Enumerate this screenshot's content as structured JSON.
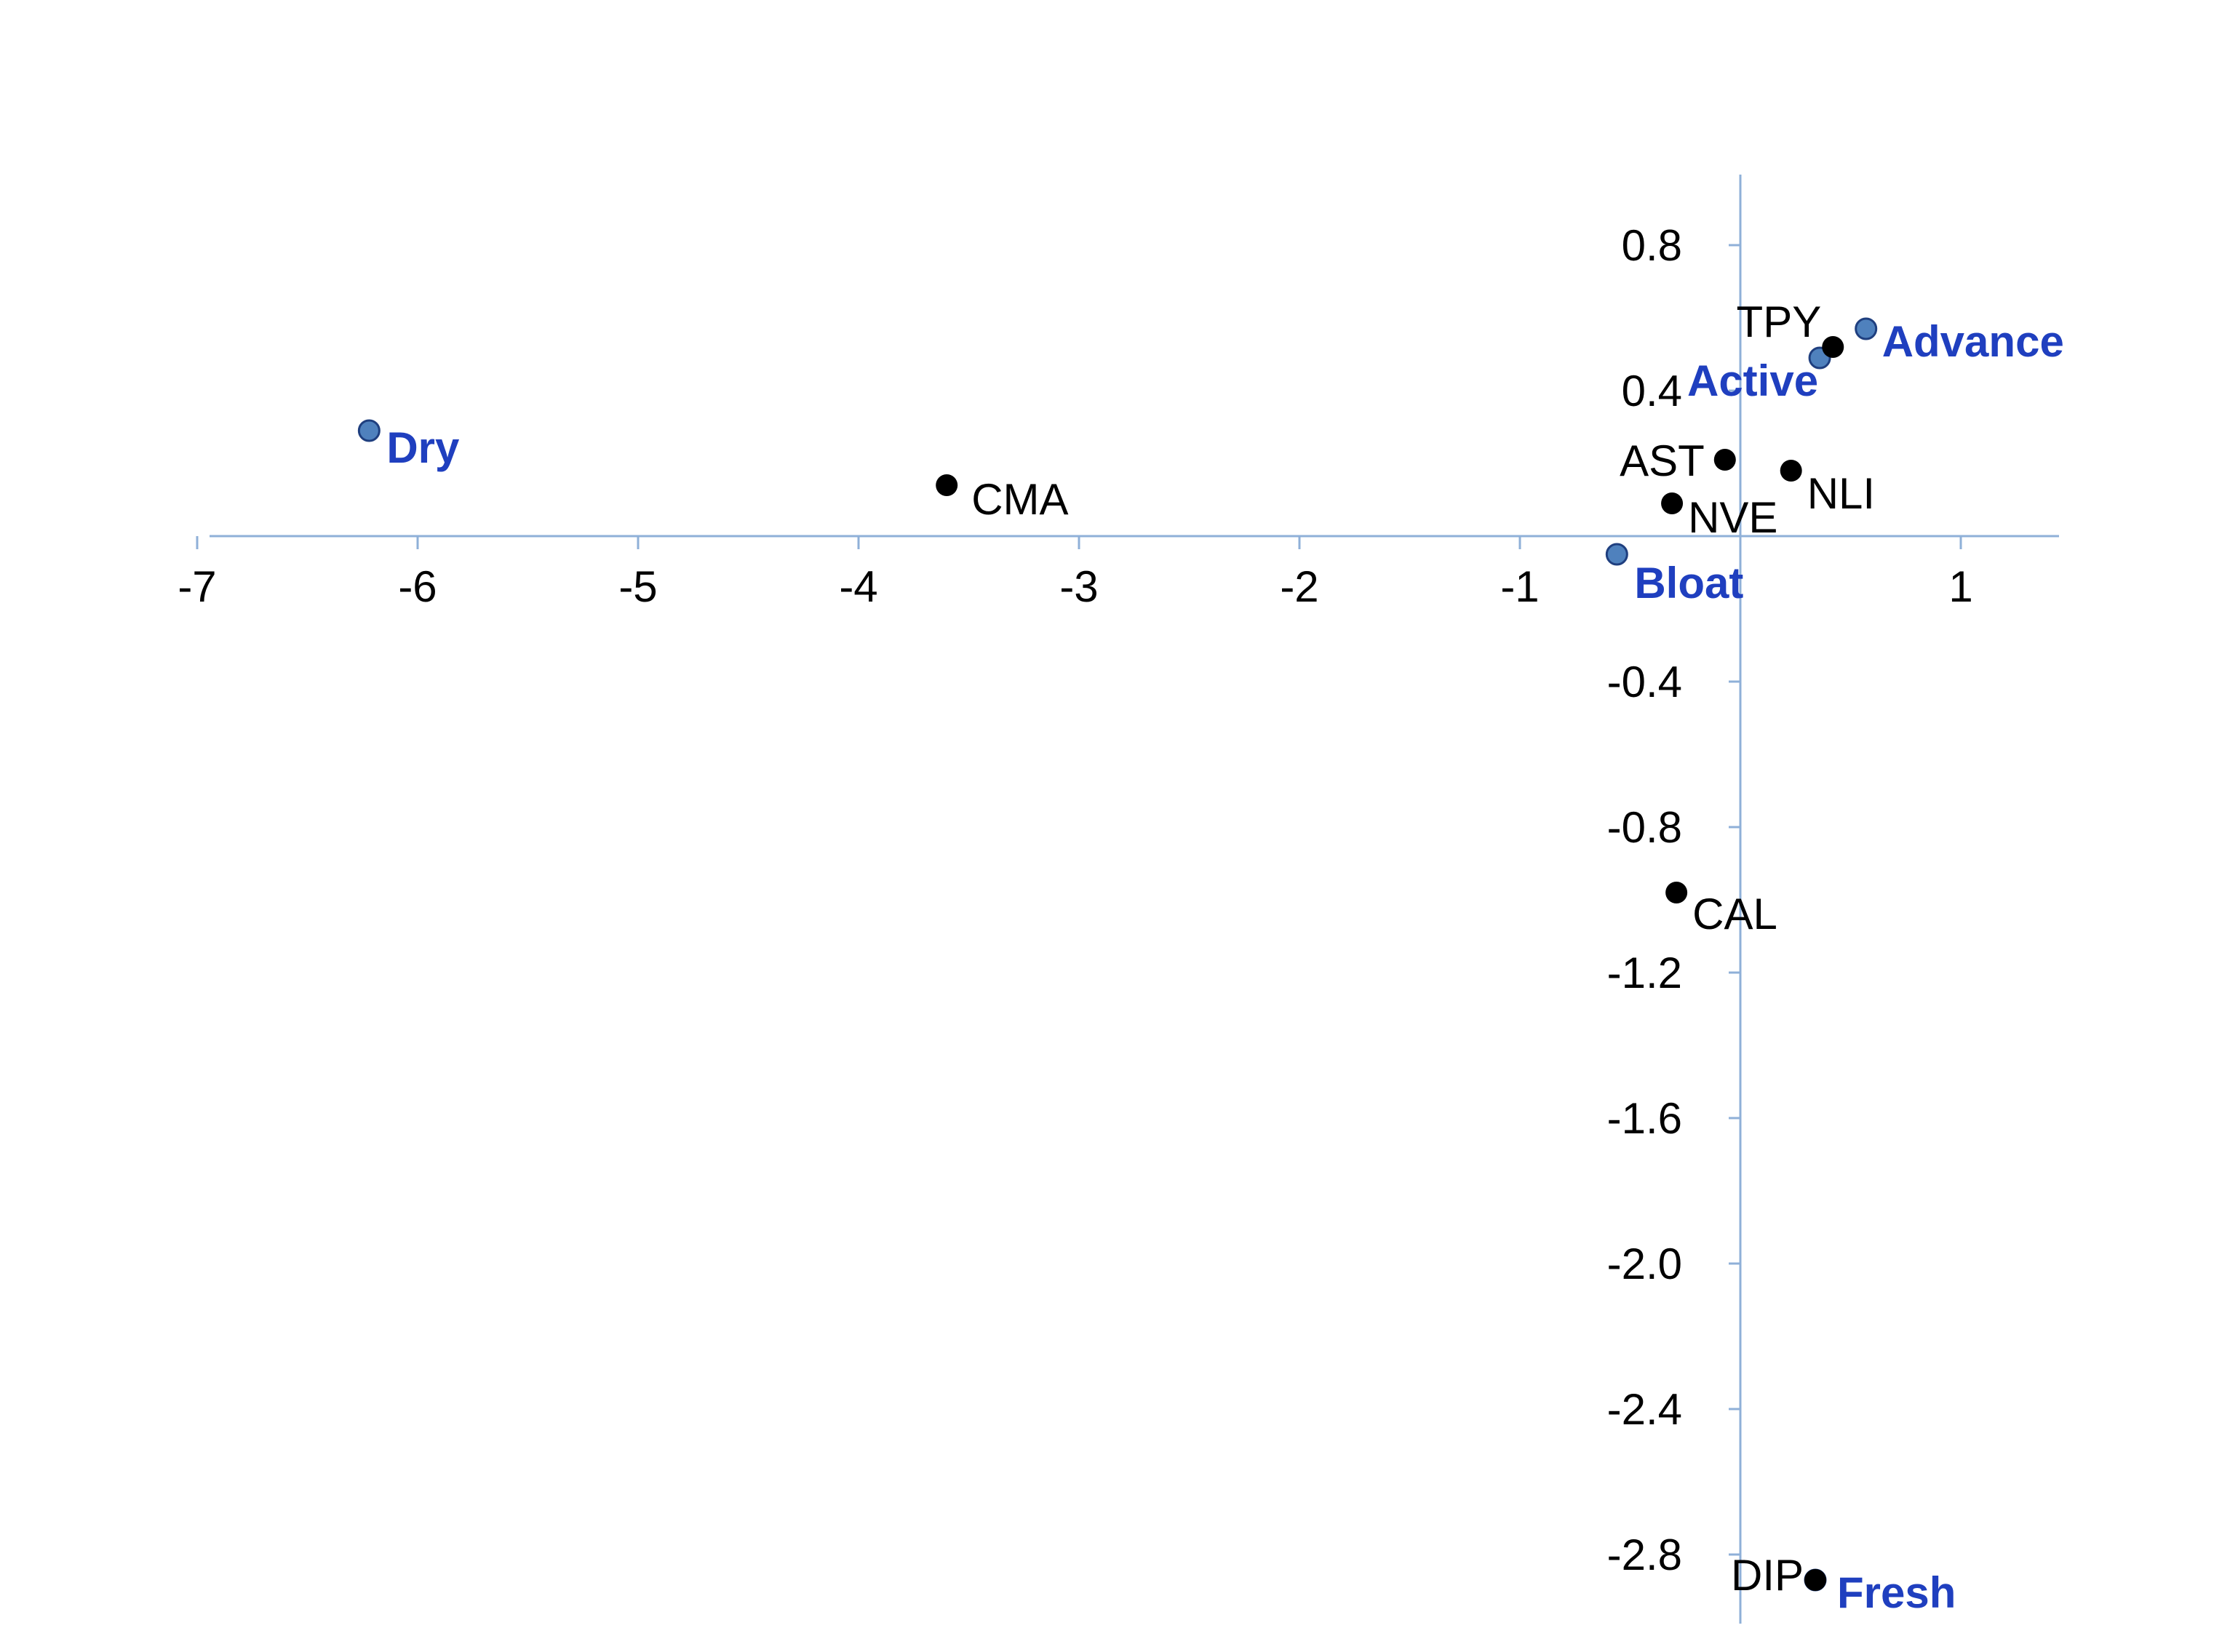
{
  "chart_data": {
    "type": "scatter",
    "title": "",
    "xlabel": "",
    "ylabel": "",
    "xlim": [
      -7,
      1.5
    ],
    "ylim": [
      -3.0,
      1.0
    ],
    "x_ticks": [
      -7,
      -6,
      -5,
      -4,
      -3,
      -2,
      -1,
      1
    ],
    "x_tick_labels": [
      "-7",
      "-6",
      "-5",
      "-4",
      "-3",
      "-2",
      "-1",
      "1"
    ],
    "y_ticks": [
      0.8,
      0.4,
      -0.4,
      -0.8,
      -1.2,
      -1.6,
      -2.0,
      -2.4,
      -2.8
    ],
    "y_tick_labels": [
      "0.8",
      "0.4",
      "-0.4",
      "-0.8",
      "-1.2",
      "-1.6",
      "-2.0",
      "-2.4",
      "-2.8"
    ],
    "grid": false,
    "legend": "none",
    "colors": {
      "axis": "#8fb0d8",
      "variable_point": "#000000",
      "state_point": "#4f81bd",
      "state_point_edge": "#1f3f7f",
      "state_label": "#1f3fbf",
      "variable_label": "#000000"
    },
    "series": [
      {
        "kind": "variable",
        "points": [
          {
            "label": "TPY",
            "x": 0.42,
            "y": 0.52
          },
          {
            "label": "AST",
            "x": -0.07,
            "y": 0.21
          },
          {
            "label": "NLI",
            "x": 0.23,
            "y": 0.18
          },
          {
            "label": "NVE",
            "x": -0.31,
            "y": 0.09
          },
          {
            "label": "CMA",
            "x": -3.6,
            "y": 0.14
          },
          {
            "label": "CAL",
            "x": -0.29,
            "y": -0.98
          },
          {
            "label": "DIP",
            "x": 0.34,
            "y": -2.87
          }
        ]
      },
      {
        "kind": "state",
        "points": [
          {
            "label": "Advance",
            "x": 0.57,
            "y": 0.57
          },
          {
            "label": "Active",
            "x": 0.36,
            "y": 0.49
          },
          {
            "label": "Dry",
            "x": -6.22,
            "y": 0.29
          },
          {
            "label": "Bloat",
            "x": -0.56,
            "y": -0.05
          },
          {
            "label": "Fresh",
            "x": 0.34,
            "y": -2.87
          }
        ]
      }
    ]
  }
}
